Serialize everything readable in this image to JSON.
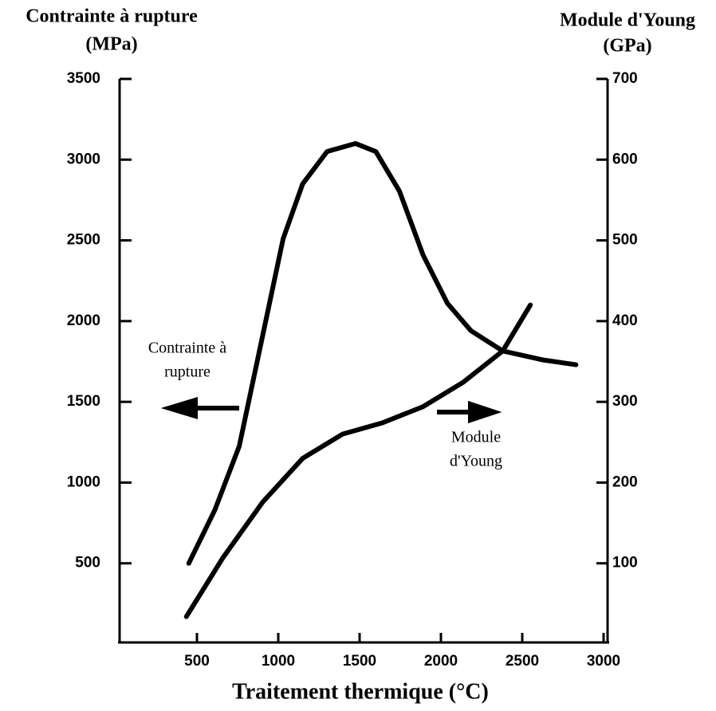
{
  "chart_data": {
    "type": "line",
    "ylabel": [
      "Contrainte à rupture",
      "(MPa)"
    ],
    "y2label": [
      "Module d'Young",
      "(GPa)"
    ],
    "xlabel": "Traitement thermique (°C)",
    "xlim": [
      0,
      3000
    ],
    "xticks": [
      500,
      1000,
      1500,
      2000,
      2500,
      3000
    ],
    "ylim": [
      0,
      3500
    ],
    "yticks": [
      500,
      1000,
      1500,
      2000,
      2500,
      3000,
      3500
    ],
    "y2lim": [
      0,
      700
    ],
    "y2ticks": [
      100,
      200,
      300,
      400,
      500,
      600,
      700
    ],
    "annotations": [
      {
        "lines": [
          "Contrainte à",
          "rupture"
        ],
        "arrow": "left"
      },
      {
        "lines": [
          "Module",
          "d'Young"
        ],
        "arrow": "right"
      }
    ],
    "series": [
      {
        "color": "#000000",
        "axis": "y",
        "x": [
          450,
          610,
          760,
          905,
          1030,
          1150,
          1300,
          1475,
          1600,
          1745,
          1890,
          2040,
          2185,
          2380,
          2625,
          2830
        ],
        "values": [
          500,
          830,
          1225,
          1915,
          2510,
          2850,
          3050,
          3100,
          3050,
          2805,
          2410,
          2110,
          1940,
          1815,
          1760,
          1730
        ]
      },
      {
        "color": "#000000",
        "axis": "y2",
        "x": [
          435,
          660,
          905,
          1150,
          1395,
          1640,
          1890,
          2135,
          2380,
          2550
        ],
        "values": [
          34,
          107,
          176,
          230,
          260,
          274,
          294,
          324,
          363,
          420
        ]
      }
    ]
  }
}
